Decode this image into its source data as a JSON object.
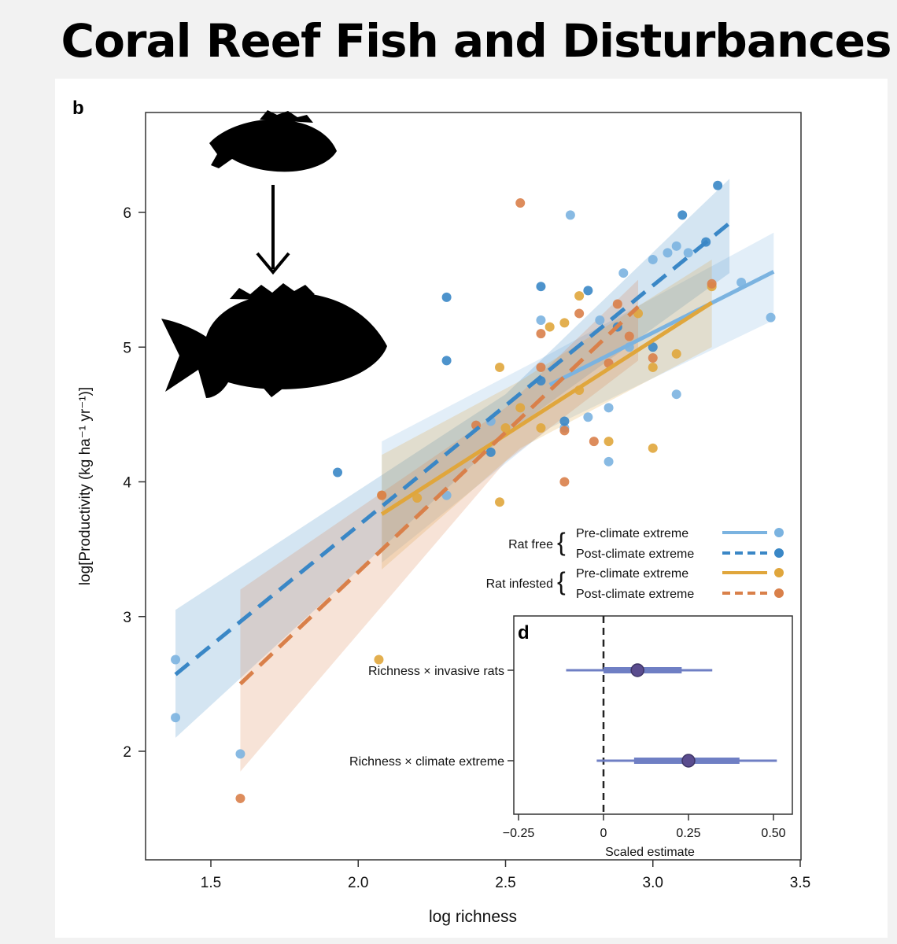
{
  "title": "Coral Reef Fish and Disturbances",
  "chart_data": [
    {
      "type": "scatter",
      "panel_label": "b",
      "xlabel": "log richness",
      "ylabel": "log[Productivity (kg ha⁻¹ yr⁻¹)]",
      "xlim": [
        1.28,
        3.5
      ],
      "ylim": [
        1.4,
        6.75
      ],
      "xticks": [
        1.5,
        2.0,
        2.5,
        3.0,
        3.5
      ],
      "xtick_labels": [
        "1.5",
        "2.0",
        "2.5",
        "3.0",
        "3.5"
      ],
      "yticks": [
        2,
        3,
        4,
        5,
        6
      ],
      "ytick_labels": [
        "2",
        "3",
        "4",
        "5",
        "6"
      ],
      "legend_position": "middle-right",
      "legend": {
        "groups": [
          {
            "label": "Rat free",
            "entries": [
              "Pre-climate extreme",
              "Post-climate extreme"
            ]
          },
          {
            "label": "Rat infested",
            "entries": [
              "Pre-climate extreme",
              "Post-climate extreme"
            ]
          }
        ]
      },
      "series": [
        {
          "name": "Rat free — Pre-climate extreme",
          "color": "#7bb3e0",
          "line_style": "solid",
          "fit": {
            "x": [
              2.65,
              3.41
            ],
            "y": [
              4.72,
              5.56
            ]
          },
          "band": {
            "x": [
              2.08,
              2.65,
              3.41
            ],
            "upper": [
              4.3,
              4.95,
              5.85
            ],
            "lower": [
              3.4,
              4.4,
              5.2
            ]
          },
          "points": [
            [
              1.38,
              2.68
            ],
            [
              1.38,
              2.25
            ],
            [
              1.6,
              1.98
            ],
            [
              2.3,
              3.9
            ],
            [
              2.45,
              4.45
            ],
            [
              2.62,
              5.2
            ],
            [
              2.7,
              4.4
            ],
            [
              2.72,
              5.98
            ],
            [
              2.78,
              4.48
            ],
            [
              2.82,
              5.2
            ],
            [
              2.85,
              4.15
            ],
            [
              2.85,
              4.55
            ],
            [
              2.9,
              5.55
            ],
            [
              2.92,
              5.0
            ],
            [
              3.0,
              5.65
            ],
            [
              3.05,
              5.7
            ],
            [
              3.08,
              5.75
            ],
            [
              3.08,
              4.65
            ],
            [
              3.12,
              5.7
            ],
            [
              3.3,
              5.48
            ],
            [
              3.4,
              5.22
            ]
          ]
        },
        {
          "name": "Rat free — Post-climate extreme",
          "color": "#3a87c6",
          "line_style": "dashed",
          "fit": {
            "x": [
              1.38,
              3.26
            ],
            "y": [
              2.57,
              5.92
            ]
          },
          "band": {
            "x": [
              1.38,
              2.5,
              3.26
            ],
            "upper": [
              3.05,
              4.65,
              6.25
            ],
            "lower": [
              2.1,
              4.35,
              5.55
            ]
          },
          "points": [
            [
              1.93,
              4.07
            ],
            [
              2.3,
              5.37
            ],
            [
              2.3,
              4.9
            ],
            [
              2.45,
              4.22
            ],
            [
              2.62,
              5.45
            ],
            [
              2.62,
              4.75
            ],
            [
              2.7,
              4.45
            ],
            [
              2.78,
              5.42
            ],
            [
              2.88,
              5.15
            ],
            [
              3.0,
              5.0
            ],
            [
              3.1,
              5.98
            ],
            [
              3.18,
              5.78
            ],
            [
              3.22,
              6.2
            ]
          ]
        },
        {
          "name": "Rat infested — Pre-climate extreme",
          "color": "#e0a63c",
          "line_style": "solid",
          "fit": {
            "x": [
              2.08,
              3.2
            ],
            "y": [
              3.76,
              5.33
            ]
          },
          "band": {
            "x": [
              2.08,
              2.55,
              3.2
            ],
            "upper": [
              4.2,
              4.75,
              5.65
            ],
            "lower": [
              3.35,
              4.25,
              5.0
            ]
          },
          "points": [
            [
              2.07,
              2.68
            ],
            [
              2.08,
              3.9
            ],
            [
              2.2,
              3.88
            ],
            [
              2.48,
              4.85
            ],
            [
              2.48,
              3.85
            ],
            [
              2.5,
              4.4
            ],
            [
              2.55,
              4.55
            ],
            [
              2.62,
              4.4
            ],
            [
              2.65,
              5.15
            ],
            [
              2.7,
              5.18
            ],
            [
              2.75,
              5.38
            ],
            [
              2.75,
              4.68
            ],
            [
              2.85,
              4.3
            ],
            [
              2.95,
              5.25
            ],
            [
              3.0,
              4.85
            ],
            [
              3.0,
              4.25
            ],
            [
              3.08,
              4.95
            ],
            [
              3.2,
              5.45
            ]
          ]
        },
        {
          "name": "Rat infested — Post-climate extreme",
          "color": "#d9804a",
          "line_style": "dashed",
          "fit": {
            "x": [
              1.6,
              2.95
            ],
            "y": [
              2.5,
              5.3
            ]
          },
          "band": {
            "x": [
              1.6,
              2.5,
              2.95
            ],
            "upper": [
              3.2,
              4.55,
              5.5
            ],
            "lower": [
              1.85,
              4.15,
              4.9
            ]
          },
          "points": [
            [
              1.6,
              1.65
            ],
            [
              2.08,
              3.9
            ],
            [
              2.4,
              4.42
            ],
            [
              2.55,
              6.07
            ],
            [
              2.62,
              5.1
            ],
            [
              2.62,
              4.85
            ],
            [
              2.7,
              4.38
            ],
            [
              2.7,
              4.0
            ],
            [
              2.75,
              5.25
            ],
            [
              2.8,
              4.3
            ],
            [
              2.85,
              4.88
            ],
            [
              2.88,
              5.32
            ],
            [
              2.92,
              5.08
            ],
            [
              3.0,
              4.92
            ],
            [
              3.2,
              5.47
            ]
          ]
        }
      ]
    },
    {
      "type": "interval",
      "panel_label": "d",
      "xlabel": "Scaled estimate",
      "xlim": [
        -0.31,
        0.55
      ],
      "xticks": [
        -0.25,
        0,
        0.25,
        0.5
      ],
      "xtick_labels": [
        "−0.25",
        "0",
        "0.25",
        "0.50"
      ],
      "reference_line": 0,
      "color": "#6f7fc4",
      "point_color": "#5a4c8e",
      "categories": [
        "Richness × invasive rats",
        "Richness × climate extreme"
      ],
      "estimates": [
        {
          "label": "Richness × invasive rats",
          "estimate": 0.1,
          "inner": [
            0.0,
            0.23
          ],
          "outer": [
            -0.11,
            0.32
          ]
        },
        {
          "label": "Richness × climate extreme",
          "estimate": 0.25,
          "inner": [
            0.09,
            0.4
          ],
          "outer": [
            -0.02,
            0.51
          ]
        }
      ]
    }
  ]
}
